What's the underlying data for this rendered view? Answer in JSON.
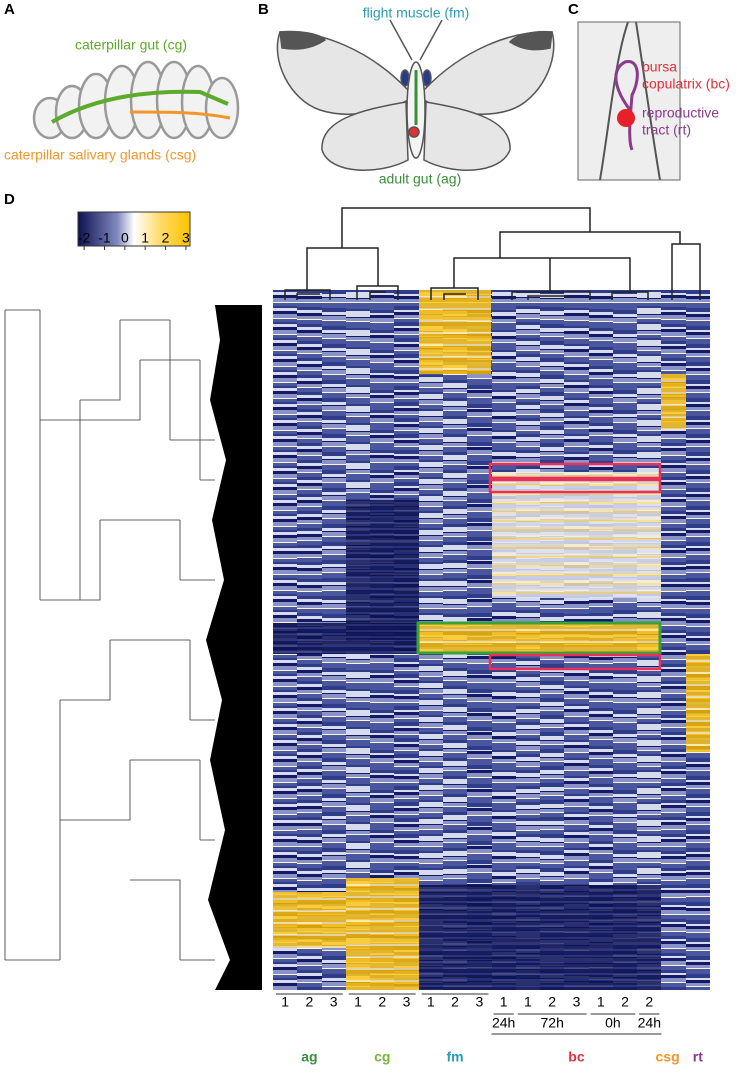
{
  "panels": {
    "A": {
      "letter": "A",
      "cg_label": "caterpillar gut (cg)",
      "csg_label": "caterpillar salivary glands (csg)"
    },
    "B": {
      "letter": "B",
      "fm_label": "flight muscle (fm)",
      "ag_label": "adult gut (ag)"
    },
    "C": {
      "letter": "C",
      "bc_label": [
        "bursa",
        "copulatrix (bc)"
      ],
      "rt_label": [
        "reproductive",
        "tract (rt)"
      ]
    },
    "D": {
      "letter": "D",
      "colorbar": {
        "lim": [
          -2.3,
          3.2
        ],
        "ticks": [
          -2,
          -1,
          0,
          1,
          2,
          3
        ]
      },
      "columns": [
        1,
        2,
        3,
        1,
        2,
        3,
        1,
        2,
        3,
        1,
        1,
        2,
        3,
        1,
        2,
        2,
        null,
        null
      ],
      "times": [
        "24h",
        "72h",
        "0h",
        "24h"
      ],
      "groups": [
        {
          "name": "ag",
          "color": "#3b8f3b"
        },
        {
          "name": "cg",
          "color": "#79b53a"
        },
        {
          "name": "fm",
          "color": "#2b9ab4"
        },
        {
          "name": "bc",
          "color": "#e0303c"
        },
        {
          "name": "csg",
          "color": "#f0962a"
        },
        {
          "name": "rt",
          "color": "#8c3a8c"
        }
      ]
    }
  }
}
